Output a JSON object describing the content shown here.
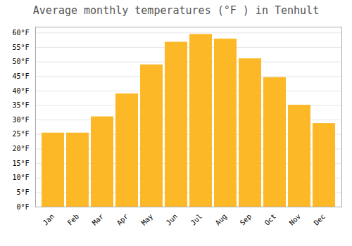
{
  "chart_data": {
    "type": "bar",
    "title": "Average monthly temperatures (°F ) in Tenhult",
    "categories": [
      "Jan",
      "Feb",
      "Mar",
      "Apr",
      "May",
      "Jun",
      "Jul",
      "Aug",
      "Sep",
      "Oct",
      "Nov",
      "Dec"
    ],
    "values": [
      25.5,
      25.5,
      31.1,
      39.0,
      49.0,
      56.8,
      59.5,
      57.9,
      51.1,
      44.6,
      35.1,
      28.8
    ],
    "color": "#FDB827",
    "ylim": [
      0,
      62
    ],
    "yticks": [
      {
        "value": 0,
        "label": "0°F"
      },
      {
        "value": 5,
        "label": "5°F"
      },
      {
        "value": 10,
        "label": "10°F"
      },
      {
        "value": 15,
        "label": "15°F"
      },
      {
        "value": 20,
        "label": "20°F"
      },
      {
        "value": 25,
        "label": "25°F"
      },
      {
        "value": 30,
        "label": "30°F"
      },
      {
        "value": 35,
        "label": "35°F"
      },
      {
        "value": 40,
        "label": "40°F"
      },
      {
        "value": 45,
        "label": "45°F"
      },
      {
        "value": 50,
        "label": "50°F"
      },
      {
        "value": 55,
        "label": "55°F"
      },
      {
        "value": 60,
        "label": "60°F"
      }
    ],
    "grid": true
  }
}
